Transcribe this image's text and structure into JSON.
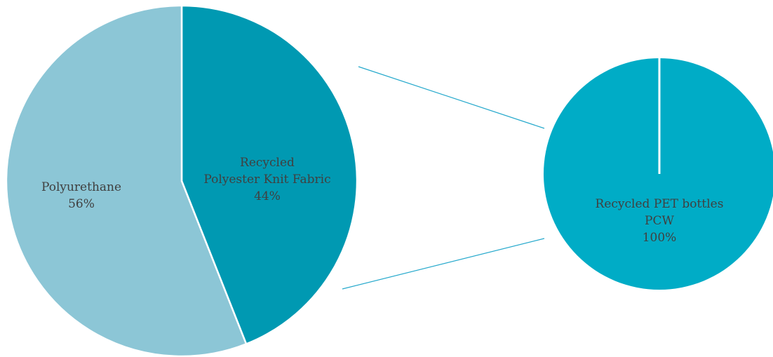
{
  "chart_data": [
    {
      "type": "pie",
      "categories": [
        "Polyurethane",
        "Recycled Polyester Knit Fabric"
      ],
      "values": [
        56,
        44
      ],
      "labels": [
        {
          "lines": [
            "Polyurethane",
            "56%"
          ]
        },
        {
          "lines": [
            "Recycled",
            "Polyester Knit Fabric",
            "44%"
          ]
        }
      ],
      "colors": [
        "#8CC6D6",
        "#0099B2"
      ],
      "start": "12 o'clock, clockwise",
      "title": "",
      "legend": "none"
    },
    {
      "type": "pie",
      "categories": [
        "Recycled PET bottles PCW"
      ],
      "values": [
        100
      ],
      "labels": [
        {
          "lines": [
            "Recycled PET bottles",
            "PCW",
            "100%"
          ]
        }
      ],
      "colors": [
        "#00ACC6"
      ],
      "detail_of": "Recycled Polyester Knit Fabric",
      "title": "",
      "legend": "none"
    }
  ],
  "colors": {
    "connector": "#26A9CC",
    "label_text": "#404040",
    "separator": "#ffffff"
  }
}
